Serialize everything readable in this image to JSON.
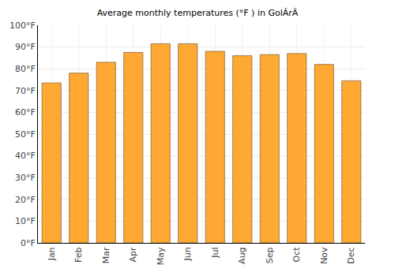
{
  "chart_data": {
    "type": "bar",
    "title": "Average monthly temperatures (°F ) in GolÃrÃ",
    "categories": [
      "Jan",
      "Feb",
      "Mar",
      "Apr",
      "May",
      "Jun",
      "Jul",
      "Aug",
      "Sep",
      "Oct",
      "Nov",
      "Dec"
    ],
    "values": [
      73.5,
      78,
      83,
      87.5,
      91.5,
      91.5,
      88,
      86,
      86.5,
      87,
      82,
      74.5
    ],
    "color": "#ffa834",
    "ylim": [
      0,
      100
    ],
    "yticks": [
      {
        "value": 0,
        "label": "0°F"
      },
      {
        "value": 10,
        "label": "10°F"
      },
      {
        "value": 20,
        "label": "20°F"
      },
      {
        "value": 30,
        "label": "30°F"
      },
      {
        "value": 40,
        "label": "40°F"
      },
      {
        "value": 50,
        "label": "50°F"
      },
      {
        "value": 60,
        "label": "60°F"
      },
      {
        "value": 70,
        "label": "70°F"
      },
      {
        "value": 80,
        "label": "80°F"
      },
      {
        "value": 90,
        "label": "90°F"
      },
      {
        "value": 100,
        "label": "100°F"
      }
    ],
    "grid": true
  }
}
